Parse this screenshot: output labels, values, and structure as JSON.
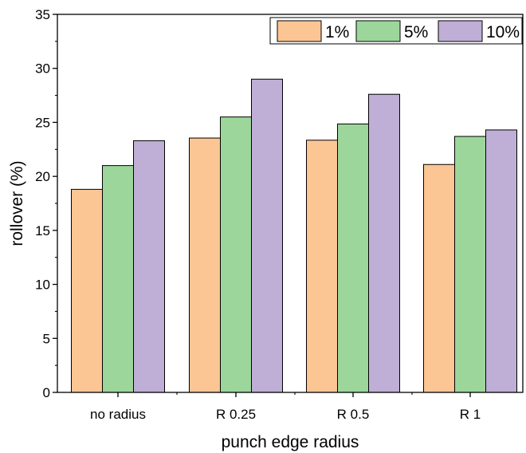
{
  "chart_data": {
    "type": "bar",
    "categories": [
      "no radius",
      "R 0.25",
      "R 0.5",
      "R 1"
    ],
    "series": [
      {
        "name": "1%",
        "values": [
          18.8,
          23.55,
          23.35,
          21.1
        ],
        "color": "#fbc594"
      },
      {
        "name": "5%",
        "values": [
          21.0,
          25.5,
          24.85,
          23.7
        ],
        "color": "#9cd69b"
      },
      {
        "name": "10%",
        "values": [
          23.3,
          29.0,
          27.6,
          24.3
        ],
        "color": "#bfaed5"
      }
    ],
    "xlabel": "punch edge radius",
    "ylabel": "rollover (%)",
    "ylim": [
      0,
      35
    ],
    "yticks": [
      0,
      5,
      10,
      15,
      20,
      25,
      30,
      35
    ],
    "ytick_labels": [
      "0",
      "5",
      "10",
      "15",
      "20",
      "25",
      "30",
      "35"
    ],
    "grid": false,
    "legend_position": "top-right"
  }
}
